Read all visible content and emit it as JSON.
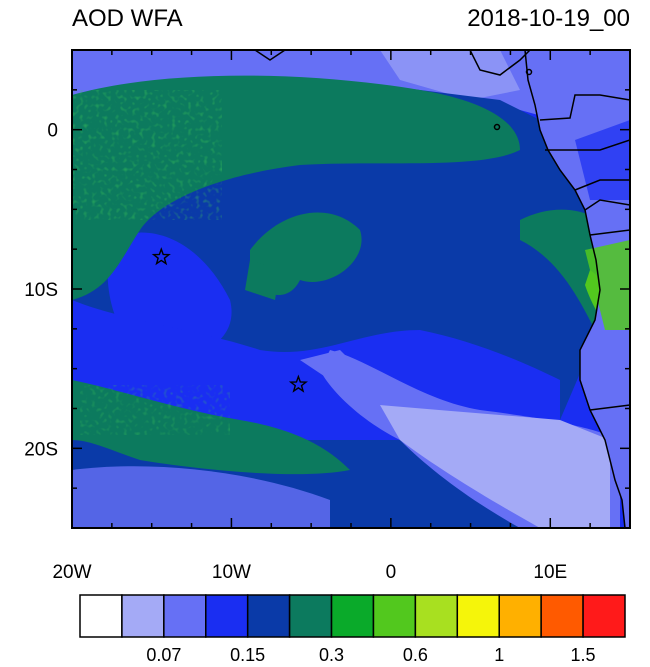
{
  "header": {
    "title": "AOD WFA",
    "timestamp": "2018-10-19_00"
  },
  "map": {
    "lon_range": [
      -20,
      15
    ],
    "lat_range": [
      -25,
      5
    ],
    "lon_ticks": [
      {
        "value": -20,
        "label": "20W"
      },
      {
        "value": -10,
        "label": "10W"
      },
      {
        "value": 0,
        "label": "0"
      },
      {
        "value": 10,
        "label": "10E"
      }
    ],
    "lat_ticks": [
      {
        "value": 0,
        "label": "0"
      },
      {
        "value": -10,
        "label": "10S"
      },
      {
        "value": -20,
        "label": "20S"
      }
    ],
    "markers": [
      {
        "name": "star-marker",
        "lon": -14.4,
        "lat": -8.0
      },
      {
        "name": "star-marker",
        "lon": -5.8,
        "lat": -16.0
      }
    ]
  },
  "colorbar": {
    "colors": [
      "#ffffff",
      "#a4aaf6",
      "#6670f5",
      "#1a2ef2",
      "#0a3aa8",
      "#0c7a5e",
      "#0aaa2a",
      "#52c81e",
      "#a8e020",
      "#f5f50a",
      "#ffb000",
      "#ff5a00",
      "#ff1a1a"
    ],
    "labels": [
      {
        "after_box": 2,
        "text": "0.07"
      },
      {
        "after_box": 4,
        "text": "0.15"
      },
      {
        "after_box": 6,
        "text": "0.3"
      },
      {
        "after_box": 8,
        "text": "0.6"
      },
      {
        "after_box": 10,
        "text": "1"
      },
      {
        "after_box": 12,
        "text": "1.5"
      }
    ]
  }
}
